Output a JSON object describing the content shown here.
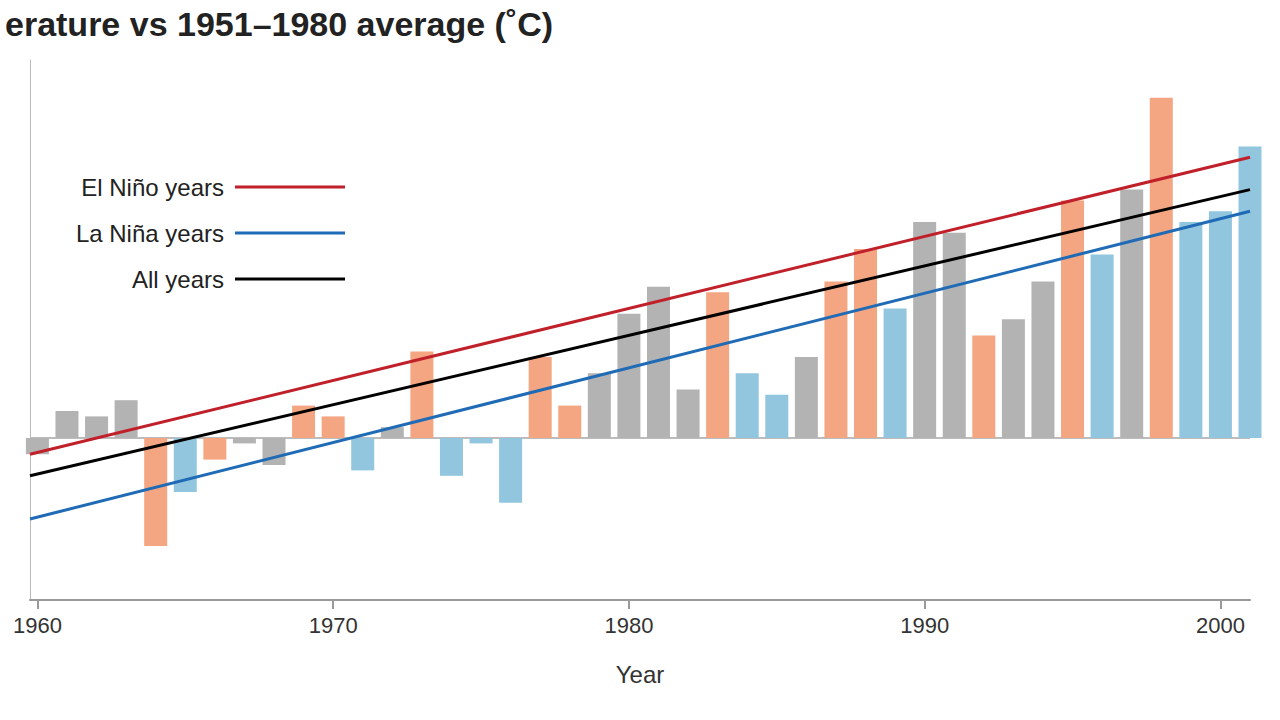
{
  "chart_data": {
    "type": "bar",
    "title": "erature vs 1951–1980 average (˚C)",
    "x_label": "Year",
    "x": [
      1960,
      1961,
      1962,
      1963,
      1964,
      1965,
      1966,
      1967,
      1968,
      1969,
      1970,
      1971,
      1972,
      1973,
      1974,
      1975,
      1976,
      1977,
      1978,
      1979,
      1980,
      1981,
      1982,
      1983,
      1984,
      1985,
      1986,
      1987,
      1988,
      1989,
      1990,
      1991,
      1992,
      1993,
      1994,
      1995,
      1996,
      1997,
      1998,
      1999,
      2000,
      2001
    ],
    "values": [
      -0.03,
      0.05,
      0.04,
      0.07,
      -0.2,
      -0.1,
      -0.04,
      -0.01,
      -0.05,
      0.06,
      0.04,
      -0.06,
      0.02,
      0.16,
      -0.07,
      -0.01,
      -0.12,
      0.15,
      0.06,
      0.12,
      0.23,
      0.28,
      0.09,
      0.27,
      0.12,
      0.08,
      0.15,
      0.29,
      0.35,
      0.24,
      0.4,
      0.38,
      0.19,
      0.22,
      0.29,
      0.44,
      0.34,
      0.46,
      0.63,
      0.4,
      0.42,
      0.54
    ],
    "colors": [
      "#b3b3b3",
      "#b3b3b3",
      "#b3b3b3",
      "#b3b3b3",
      "#f4a582",
      "#92c5de",
      "#f4a582",
      "#b3b3b3",
      "#b3b3b3",
      "#f4a582",
      "#f4a582",
      "#92c5de",
      "#b3b3b3",
      "#f4a582",
      "#92c5de",
      "#92c5de",
      "#92c5de",
      "#f4a582",
      "#f4a582",
      "#b3b3b3",
      "#b3b3b3",
      "#b3b3b3",
      "#b3b3b3",
      "#f4a582",
      "#92c5de",
      "#92c5de",
      "#b3b3b3",
      "#f4a582",
      "#f4a582",
      "#92c5de",
      "#b3b3b3",
      "#b3b3b3",
      "#f4a582",
      "#b3b3b3",
      "#b3b3b3",
      "#f4a582",
      "#92c5de",
      "#b3b3b3",
      "#f4a582",
      "#92c5de",
      "#92c5de",
      "#92c5de"
    ],
    "series": [
      {
        "name": "El Niño years",
        "type": "line",
        "color": "#c0202a",
        "x": [
          1959.75,
          2001
        ],
        "values": [
          -0.03,
          0.52
        ]
      },
      {
        "name": "La Niña years",
        "type": "line",
        "color": "#1f6bb5",
        "x": [
          1959.75,
          2001
        ],
        "values": [
          -0.15,
          0.42
        ]
      },
      {
        "name": "All years",
        "type": "line",
        "color": "#000000",
        "x": [
          1959.75,
          2001
        ],
        "values": [
          -0.07,
          0.46
        ]
      }
    ],
    "xlim": [
      1959.75,
      2001
    ],
    "xticks": [
      1960,
      1970,
      1980,
      1990,
      2000
    ],
    "ylim": [
      -0.3,
      0.7
    ],
    "yticks": [
      0
    ],
    "grid": true,
    "tick_labels": "x",
    "legend": "upper left"
  }
}
